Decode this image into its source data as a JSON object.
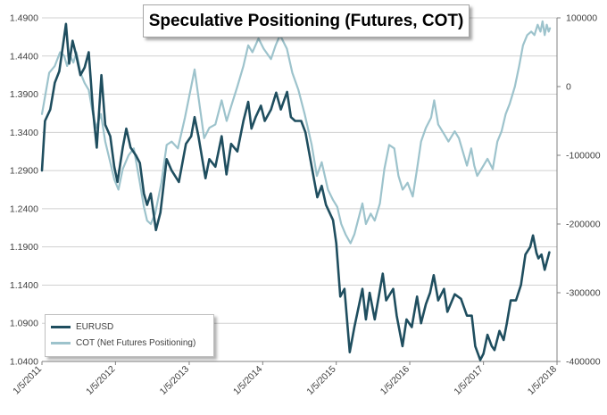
{
  "chart_data": {
    "type": "line",
    "title": "Speculative Positioning (Futures, COT)",
    "x_tick_labels": [
      "1/5/2011",
      "1/5/2012",
      "1/5/2013",
      "1/5/2014",
      "1/5/2015",
      "1/5/2016",
      "1/5/2017",
      "1/5/2018"
    ],
    "x_range": [
      "2011-01-05",
      "2018-01-05"
    ],
    "y_left": {
      "range": [
        1.04,
        1.49
      ],
      "ticks": [
        "1.4900",
        "1.4400",
        "1.3900",
        "1.3400",
        "1.2900",
        "1.2400",
        "1.1900",
        "1.1400",
        "1.0900",
        "1.0400"
      ]
    },
    "y_right": {
      "range": [
        -400000,
        100000
      ],
      "ticks": [
        "100000",
        "0",
        "-100000",
        "-200000",
        "-300000",
        "-400000"
      ]
    },
    "grid": "horizontal",
    "legend_placement": "bottom-left",
    "series": [
      {
        "name": "EURUSD",
        "axis": "left",
        "color": "#1f4e5f",
        "points": [
          [
            "2011-01-05",
            1.29
          ],
          [
            "2011-01-20",
            1.355
          ],
          [
            "2011-02-15",
            1.37
          ],
          [
            "2011-03-10",
            1.405
          ],
          [
            "2011-04-01",
            1.42
          ],
          [
            "2011-04-20",
            1.455
          ],
          [
            "2011-05-04",
            1.482
          ],
          [
            "2011-05-20",
            1.43
          ],
          [
            "2011-06-06",
            1.46
          ],
          [
            "2011-06-25",
            1.44
          ],
          [
            "2011-07-15",
            1.415
          ],
          [
            "2011-08-05",
            1.425
          ],
          [
            "2011-08-25",
            1.445
          ],
          [
            "2011-09-15",
            1.37
          ],
          [
            "2011-10-04",
            1.32
          ],
          [
            "2011-10-27",
            1.415
          ],
          [
            "2011-11-15",
            1.35
          ],
          [
            "2011-12-10",
            1.335
          ],
          [
            "2011-12-30",
            1.295
          ],
          [
            "2012-01-15",
            1.275
          ],
          [
            "2012-02-10",
            1.32
          ],
          [
            "2012-02-28",
            1.345
          ],
          [
            "2012-03-20",
            1.32
          ],
          [
            "2012-04-15",
            1.31
          ],
          [
            "2012-05-05",
            1.3
          ],
          [
            "2012-05-25",
            1.26
          ],
          [
            "2012-06-10",
            1.245
          ],
          [
            "2012-06-28",
            1.26
          ],
          [
            "2012-07-24",
            1.212
          ],
          [
            "2012-08-15",
            1.235
          ],
          [
            "2012-09-15",
            1.305
          ],
          [
            "2012-10-10",
            1.29
          ],
          [
            "2012-11-15",
            1.275
          ],
          [
            "2012-12-20",
            1.325
          ],
          [
            "2013-01-15",
            1.335
          ],
          [
            "2013-02-01",
            1.36
          ],
          [
            "2013-02-20",
            1.335
          ],
          [
            "2013-03-27",
            1.28
          ],
          [
            "2013-04-15",
            1.305
          ],
          [
            "2013-05-15",
            1.295
          ],
          [
            "2013-06-15",
            1.335
          ],
          [
            "2013-07-09",
            1.285
          ],
          [
            "2013-08-01",
            1.325
          ],
          [
            "2013-09-01",
            1.315
          ],
          [
            "2013-10-01",
            1.355
          ],
          [
            "2013-10-25",
            1.38
          ],
          [
            "2013-11-10",
            1.345
          ],
          [
            "2013-12-01",
            1.36
          ],
          [
            "2013-12-27",
            1.375
          ],
          [
            "2014-01-15",
            1.355
          ],
          [
            "2014-02-15",
            1.37
          ],
          [
            "2014-03-13",
            1.392
          ],
          [
            "2014-04-05",
            1.37
          ],
          [
            "2014-05-06",
            1.393
          ],
          [
            "2014-05-25",
            1.36
          ],
          [
            "2014-06-15",
            1.355
          ],
          [
            "2014-07-15",
            1.355
          ],
          [
            "2014-08-05",
            1.34
          ],
          [
            "2014-09-05",
            1.295
          ],
          [
            "2014-10-03",
            1.255
          ],
          [
            "2014-10-25",
            1.27
          ],
          [
            "2014-11-15",
            1.245
          ],
          [
            "2014-12-20",
            1.225
          ],
          [
            "2015-01-05",
            1.195
          ],
          [
            "2015-01-25",
            1.125
          ],
          [
            "2015-02-15",
            1.135
          ],
          [
            "2015-03-13",
            1.052
          ],
          [
            "2015-04-05",
            1.085
          ],
          [
            "2015-05-15",
            1.135
          ],
          [
            "2015-06-01",
            1.095
          ],
          [
            "2015-06-20",
            1.13
          ],
          [
            "2015-07-15",
            1.095
          ],
          [
            "2015-08-24",
            1.155
          ],
          [
            "2015-09-10",
            1.12
          ],
          [
            "2015-10-15",
            1.135
          ],
          [
            "2015-11-01",
            1.1
          ],
          [
            "2015-11-30",
            1.06
          ],
          [
            "2015-12-20",
            1.095
          ],
          [
            "2016-01-15",
            1.085
          ],
          [
            "2016-02-10",
            1.125
          ],
          [
            "2016-03-01",
            1.09
          ],
          [
            "2016-03-25",
            1.115
          ],
          [
            "2016-04-15",
            1.13
          ],
          [
            "2016-05-03",
            1.153
          ],
          [
            "2016-05-25",
            1.12
          ],
          [
            "2016-06-23",
            1.135
          ],
          [
            "2016-07-10",
            1.105
          ],
          [
            "2016-08-15",
            1.128
          ],
          [
            "2016-09-15",
            1.122
          ],
          [
            "2016-10-15",
            1.1
          ],
          [
            "2016-11-08",
            1.1
          ],
          [
            "2016-11-25",
            1.06
          ],
          [
            "2016-12-20",
            1.042
          ],
          [
            "2017-01-05",
            1.05
          ],
          [
            "2017-01-25",
            1.075
          ],
          [
            "2017-02-15",
            1.06
          ],
          [
            "2017-03-01",
            1.055
          ],
          [
            "2017-03-25",
            1.08
          ],
          [
            "2017-04-15",
            1.068
          ],
          [
            "2017-05-01",
            1.09
          ],
          [
            "2017-05-20",
            1.12
          ],
          [
            "2017-06-15",
            1.12
          ],
          [
            "2017-07-10",
            1.14
          ],
          [
            "2017-08-01",
            1.18
          ],
          [
            "2017-08-25",
            1.19
          ],
          [
            "2017-09-08",
            1.205
          ],
          [
            "2017-09-25",
            1.182
          ],
          [
            "2017-10-05",
            1.175
          ],
          [
            "2017-10-20",
            1.18
          ],
          [
            "2017-11-05",
            1.16
          ],
          [
            "2017-11-20",
            1.175
          ],
          [
            "2017-11-28",
            1.183
          ]
        ]
      },
      {
        "name": "COT (Net Futures Positioning)",
        "axis": "right",
        "color": "#9dc3cc",
        "points": [
          [
            "2011-01-05",
            -40000
          ],
          [
            "2011-01-20",
            -15000
          ],
          [
            "2011-02-10",
            20000
          ],
          [
            "2011-03-10",
            30000
          ],
          [
            "2011-04-05",
            50000
          ],
          [
            "2011-04-25",
            45000
          ],
          [
            "2011-05-10",
            30000
          ],
          [
            "2011-05-25",
            45000
          ],
          [
            "2011-06-10",
            35000
          ],
          [
            "2011-06-25",
            50000
          ],
          [
            "2011-07-15",
            20000
          ],
          [
            "2011-08-05",
            5000
          ],
          [
            "2011-08-25",
            -5000
          ],
          [
            "2011-09-15",
            -40000
          ],
          [
            "2011-10-01",
            -60000
          ],
          [
            "2011-10-25",
            -40000
          ],
          [
            "2011-11-15",
            -80000
          ],
          [
            "2011-12-10",
            -110000
          ],
          [
            "2011-12-30",
            -135000
          ],
          [
            "2012-01-20",
            -150000
          ],
          [
            "2012-02-10",
            -120000
          ],
          [
            "2012-03-10",
            -100000
          ],
          [
            "2012-04-05",
            -90000
          ],
          [
            "2012-05-05",
            -140000
          ],
          [
            "2012-05-25",
            -175000
          ],
          [
            "2012-06-10",
            -195000
          ],
          [
            "2012-06-28",
            -200000
          ],
          [
            "2012-07-20",
            -185000
          ],
          [
            "2012-08-20",
            -140000
          ],
          [
            "2012-09-15",
            -85000
          ],
          [
            "2012-10-10",
            -80000
          ],
          [
            "2012-11-10",
            -90000
          ],
          [
            "2012-12-15",
            -45000
          ],
          [
            "2013-01-15",
            0
          ],
          [
            "2013-02-01",
            25000
          ],
          [
            "2013-02-20",
            -15000
          ],
          [
            "2013-03-20",
            -75000
          ],
          [
            "2013-04-15",
            -60000
          ],
          [
            "2013-05-15",
            -55000
          ],
          [
            "2013-06-15",
            -20000
          ],
          [
            "2013-07-10",
            -50000
          ],
          [
            "2013-08-05",
            -25000
          ],
          [
            "2013-09-01",
            0
          ],
          [
            "2013-10-01",
            30000
          ],
          [
            "2013-10-25",
            60000
          ],
          [
            "2013-11-15",
            50000
          ],
          [
            "2013-12-15",
            70000
          ],
          [
            "2014-01-10",
            55000
          ],
          [
            "2014-02-15",
            40000
          ],
          [
            "2014-03-10",
            60000
          ],
          [
            "2014-04-01",
            75000
          ],
          [
            "2014-05-05",
            55000
          ],
          [
            "2014-06-01",
            20000
          ],
          [
            "2014-07-01",
            -5000
          ],
          [
            "2014-08-01",
            -40000
          ],
          [
            "2014-09-05",
            -85000
          ],
          [
            "2014-10-01",
            -130000
          ],
          [
            "2014-10-25",
            -110000
          ],
          [
            "2014-11-25",
            -150000
          ],
          [
            "2014-12-20",
            -165000
          ],
          [
            "2015-01-10",
            -175000
          ],
          [
            "2015-01-30",
            -200000
          ],
          [
            "2015-02-20",
            -215000
          ],
          [
            "2015-03-17",
            -228000
          ],
          [
            "2015-04-05",
            -215000
          ],
          [
            "2015-05-15",
            -170000
          ],
          [
            "2015-06-01",
            -200000
          ],
          [
            "2015-06-25",
            -185000
          ],
          [
            "2015-07-15",
            -195000
          ],
          [
            "2015-08-10",
            -170000
          ],
          [
            "2015-09-01",
            -120000
          ],
          [
            "2015-09-25",
            -85000
          ],
          [
            "2015-10-20",
            -90000
          ],
          [
            "2015-11-10",
            -130000
          ],
          [
            "2015-12-01",
            -150000
          ],
          [
            "2015-12-25",
            -140000
          ],
          [
            "2016-01-20",
            -160000
          ],
          [
            "2016-02-10",
            -120000
          ],
          [
            "2016-03-01",
            -80000
          ],
          [
            "2016-03-25",
            -60000
          ],
          [
            "2016-04-20",
            -45000
          ],
          [
            "2016-05-05",
            -20000
          ],
          [
            "2016-05-25",
            -55000
          ],
          [
            "2016-06-25",
            -70000
          ],
          [
            "2016-07-15",
            -80000
          ],
          [
            "2016-08-15",
            -65000
          ],
          [
            "2016-09-05",
            -75000
          ],
          [
            "2016-10-15",
            -115000
          ],
          [
            "2016-11-05",
            -90000
          ],
          [
            "2016-11-20",
            -115000
          ],
          [
            "2016-12-05",
            -130000
          ],
          [
            "2017-01-05",
            -115000
          ],
          [
            "2017-01-25",
            -105000
          ],
          [
            "2017-02-20",
            -120000
          ],
          [
            "2017-03-15",
            -80000
          ],
          [
            "2017-04-05",
            -65000
          ],
          [
            "2017-04-25",
            -40000
          ],
          [
            "2017-05-15",
            -25000
          ],
          [
            "2017-06-10",
            0
          ],
          [
            "2017-07-01",
            30000
          ],
          [
            "2017-07-20",
            60000
          ],
          [
            "2017-08-10",
            75000
          ],
          [
            "2017-08-30",
            80000
          ],
          [
            "2017-09-15",
            75000
          ],
          [
            "2017-10-01",
            90000
          ],
          [
            "2017-10-15",
            80000
          ],
          [
            "2017-10-25",
            95000
          ],
          [
            "2017-11-05",
            75000
          ],
          [
            "2017-11-15",
            90000
          ],
          [
            "2017-11-25",
            80000
          ],
          [
            "2017-12-01",
            85000
          ]
        ]
      }
    ]
  }
}
